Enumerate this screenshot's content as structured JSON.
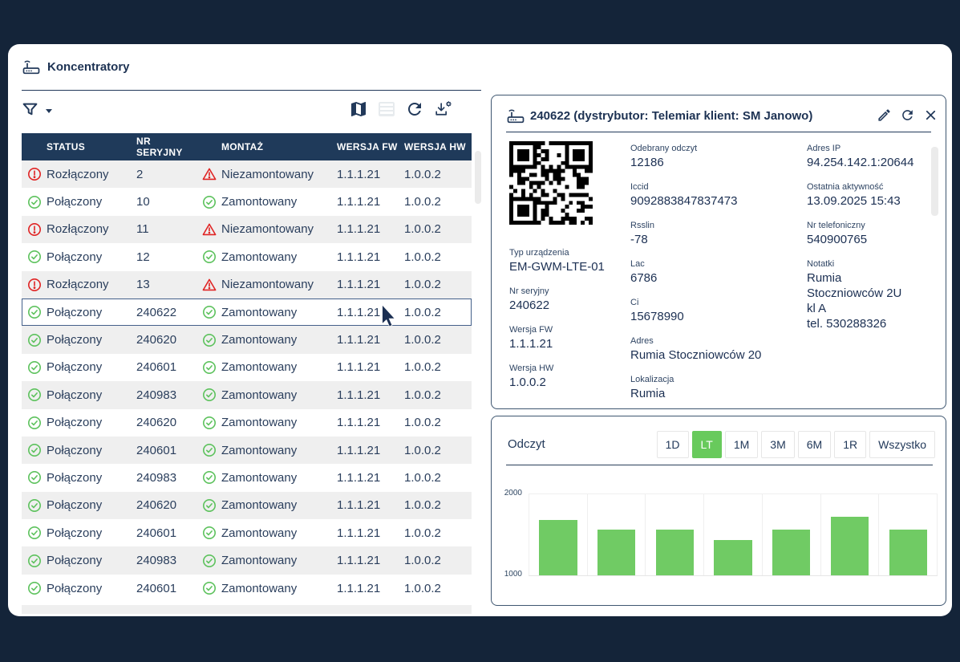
{
  "app": {
    "title": "Koncentratory"
  },
  "toolbar": {
    "icons": [
      "filter-icon",
      "map-icon",
      "table-view-icon",
      "refresh-icon",
      "download-settings-icon"
    ]
  },
  "table": {
    "headers": [
      "STATUS",
      "NR SERYJNY",
      "MONTAŻ",
      "WERSJA FW",
      "WERSJA HW"
    ],
    "rows": [
      {
        "status": "Rozłączony",
        "status_state": "error",
        "serial": "2",
        "mount": "Niezamontowany",
        "mount_state": "error",
        "fw": "1.1.1.21",
        "hw": "1.0.0.2",
        "selected": false
      },
      {
        "status": "Połączony",
        "status_state": "ok",
        "serial": "10",
        "mount": "Zamontowany",
        "mount_state": "ok",
        "fw": "1.1.1.21",
        "hw": "1.0.0.2",
        "selected": false
      },
      {
        "status": "Rozłączony",
        "status_state": "error",
        "serial": "11",
        "mount": "Niezamontowany",
        "mount_state": "error",
        "fw": "1.1.1.21",
        "hw": "1.0.0.2",
        "selected": false
      },
      {
        "status": "Połączony",
        "status_state": "ok",
        "serial": "12",
        "mount": "Zamontowany",
        "mount_state": "ok",
        "fw": "1.1.1.21",
        "hw": "1.0.0.2",
        "selected": false
      },
      {
        "status": "Rozłączony",
        "status_state": "error",
        "serial": "13",
        "mount": "Niezamontowany",
        "mount_state": "error",
        "fw": "1.1.1.21",
        "hw": "1.0.0.2",
        "selected": false
      },
      {
        "status": "Połączony",
        "status_state": "ok",
        "serial": "240622",
        "mount": "Zamontowany",
        "mount_state": "ok",
        "fw": "1.1.1.21",
        "hw": "1.0.0.2",
        "selected": true
      },
      {
        "status": "Połączony",
        "status_state": "ok",
        "serial": "240620",
        "mount": "Zamontowany",
        "mount_state": "ok",
        "fw": "1.1.1.21",
        "hw": "1.0.0.2",
        "selected": false
      },
      {
        "status": "Połączony",
        "status_state": "ok",
        "serial": "240601",
        "mount": "Zamontowany",
        "mount_state": "ok",
        "fw": "1.1.1.21",
        "hw": "1.0.0.2",
        "selected": false
      },
      {
        "status": "Połączony",
        "status_state": "ok",
        "serial": "240983",
        "mount": "Zamontowany",
        "mount_state": "ok",
        "fw": "1.1.1.21",
        "hw": "1.0.0.2",
        "selected": false
      },
      {
        "status": "Połączony",
        "status_state": "ok",
        "serial": "240620",
        "mount": "Zamontowany",
        "mount_state": "ok",
        "fw": "1.1.1.21",
        "hw": "1.0.0.2",
        "selected": false
      },
      {
        "status": "Połączony",
        "status_state": "ok",
        "serial": "240601",
        "mount": "Zamontowany",
        "mount_state": "ok",
        "fw": "1.1.1.21",
        "hw": "1.0.0.2",
        "selected": false
      },
      {
        "status": "Połączony",
        "status_state": "ok",
        "serial": "240983",
        "mount": "Zamontowany",
        "mount_state": "ok",
        "fw": "1.1.1.21",
        "hw": "1.0.0.2",
        "selected": false
      },
      {
        "status": "Połączony",
        "status_state": "ok",
        "serial": "240620",
        "mount": "Zamontowany",
        "mount_state": "ok",
        "fw": "1.1.1.21",
        "hw": "1.0.0.2",
        "selected": false
      },
      {
        "status": "Połączony",
        "status_state": "ok",
        "serial": "240601",
        "mount": "Zamontowany",
        "mount_state": "ok",
        "fw": "1.1.1.21",
        "hw": "1.0.0.2",
        "selected": false
      },
      {
        "status": "Połączony",
        "status_state": "ok",
        "serial": "240983",
        "mount": "Zamontowany",
        "mount_state": "ok",
        "fw": "1.1.1.21",
        "hw": "1.0.0.2",
        "selected": false
      },
      {
        "status": "Połączony",
        "status_state": "ok",
        "serial": "240601",
        "mount": "Zamontowany",
        "mount_state": "ok",
        "fw": "1.1.1.21",
        "hw": "1.0.0.2",
        "selected": false
      }
    ]
  },
  "detail": {
    "title": "240622 (dystrybutor: Telemiar klient: SM Janowo)",
    "columns": [
      {
        "fields": [
          {
            "label": "Typ urządzenia",
            "value": "EM-GWM-LTE-01"
          },
          {
            "label": "Nr seryjny",
            "value": "240622"
          },
          {
            "label": "Wersja FW",
            "value": "1.1.1.21"
          },
          {
            "label": "Wersja HW",
            "value": "1.0.0.2"
          }
        ]
      },
      {
        "fields": [
          {
            "label": "Odebrany odczyt",
            "value": "12186"
          },
          {
            "label": "Iccid",
            "value": "9092883847837473"
          },
          {
            "label": "Rsslin",
            "value": "-78"
          },
          {
            "label": "Lac",
            "value": "6786"
          },
          {
            "label": "Ci",
            "value": "15678990"
          },
          {
            "label": "Adres",
            "value": "Rumia Stoczniowców 20"
          },
          {
            "label": "Lokalizacja",
            "value": "Rumia"
          }
        ]
      },
      {
        "fields": [
          {
            "label": "Adres IP",
            "value": "94.254.142.1:20644"
          },
          {
            "label": "Ostatnia aktywność",
            "value": "13.09.2025 15:43"
          },
          {
            "label": "Nr telefoniczny",
            "value": "540900765"
          },
          {
            "label": "Notatki",
            "value": "Rumia\nStoczniowców 2U\nkl A\ntel. 530288326"
          }
        ]
      }
    ]
  },
  "chart": {
    "title": "Odczyt",
    "ranges": [
      "1D",
      "LT",
      "1M",
      "3M",
      "6M",
      "1R",
      "Wszystko"
    ],
    "selected_range": "LT"
  },
  "chart_data": {
    "type": "bar",
    "title": "Odczyt",
    "categories": [
      "",
      "",
      "",
      "",
      "",
      "",
      ""
    ],
    "values": [
      1680,
      1565,
      1565,
      1440,
      1565,
      1725,
      1565
    ],
    "ylim": [
      1000,
      2000
    ],
    "yticks": [
      "1000",
      "2000"
    ],
    "xlabel": "",
    "ylabel": "",
    "grid": true,
    "legend": false,
    "bar_color": "#70CB64"
  },
  "colors": {
    "background_navy": "#142439",
    "header_navy": "#1F3A5A",
    "text_navy": "#1D3253",
    "accent_green": "#68CA5C",
    "bar_green": "#70CB64",
    "error_red": "#E02424",
    "zebra_gray": "#EFEFEF"
  }
}
